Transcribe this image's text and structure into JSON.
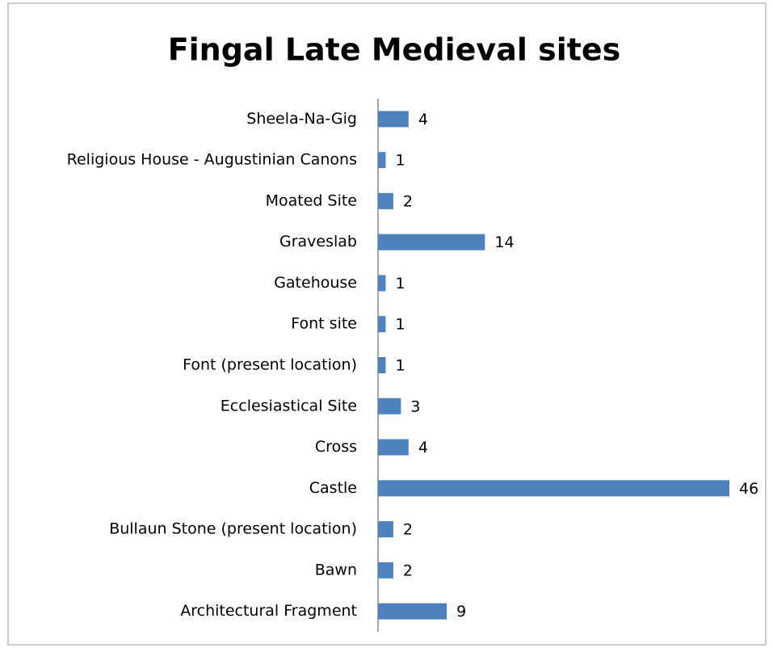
{
  "chart_data": {
    "type": "bar",
    "orientation": "horizontal",
    "title": "Fingal Late Medieval sites",
    "categories": [
      "Sheela-Na-Gig",
      "Religious House - Augustinian Canons",
      "Moated Site",
      "Graveslab",
      "Gatehouse",
      "Font site",
      "Font (present location)",
      "Ecclesiastical Site",
      "Cross",
      "Castle",
      "Bullaun Stone (present location)",
      "Bawn",
      "Architectural Fragment"
    ],
    "values": [
      4,
      1,
      2,
      14,
      1,
      1,
      1,
      3,
      4,
      46,
      2,
      2,
      9
    ],
    "color": "#4f81bd",
    "xlim": [
      0,
      46
    ]
  }
}
